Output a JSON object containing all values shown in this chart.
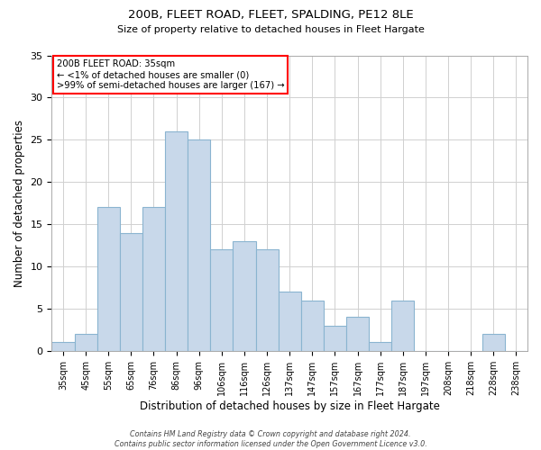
{
  "title": "200B, FLEET ROAD, FLEET, SPALDING, PE12 8LE",
  "subtitle": "Size of property relative to detached houses in Fleet Hargate",
  "xlabel": "Distribution of detached houses by size in Fleet Hargate",
  "ylabel": "Number of detached properties",
  "bar_color": "#c8d8ea",
  "bar_edge_color": "#8ab4d0",
  "categories": [
    "35sqm",
    "45sqm",
    "55sqm",
    "65sqm",
    "76sqm",
    "86sqm",
    "96sqm",
    "106sqm",
    "116sqm",
    "126sqm",
    "137sqm",
    "147sqm",
    "157sqm",
    "167sqm",
    "177sqm",
    "187sqm",
    "197sqm",
    "208sqm",
    "218sqm",
    "228sqm",
    "238sqm"
  ],
  "values": [
    1,
    2,
    17,
    14,
    17,
    26,
    25,
    12,
    13,
    12,
    7,
    6,
    3,
    4,
    1,
    6,
    0,
    0,
    0,
    2,
    0
  ],
  "ylim": [
    0,
    35
  ],
  "yticks": [
    0,
    5,
    10,
    15,
    20,
    25,
    30,
    35
  ],
  "annotation_lines": [
    "200B FLEET ROAD: 35sqm",
    "← <1% of detached houses are smaller (0)",
    ">99% of semi-detached houses are larger (167) →"
  ],
  "footer_lines": [
    "Contains HM Land Registry data © Crown copyright and database right 2024.",
    "Contains public sector information licensed under the Open Government Licence v3.0."
  ],
  "background_color": "#ffffff",
  "grid_color": "#d0d0d0"
}
